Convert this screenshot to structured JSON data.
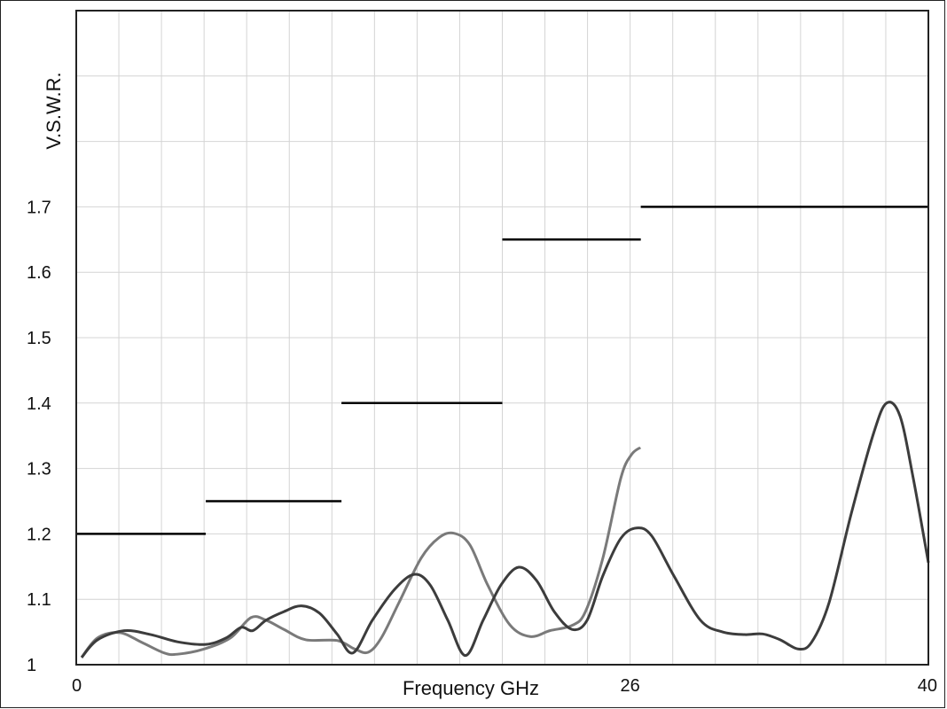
{
  "chart_data": {
    "type": "line",
    "y_label": "V.S.W.R.",
    "x_label": "Frequency GHz",
    "xlim": [
      0,
      40
    ],
    "xticks": [
      0,
      26,
      40
    ],
    "x_grid": [
      2,
      4,
      6,
      8,
      10,
      12,
      14,
      16,
      18,
      20,
      22,
      24,
      26,
      28,
      30,
      32,
      34,
      36,
      38
    ],
    "ylim": [
      1,
      2
    ],
    "yticks": [
      1,
      1.1,
      1.2,
      1.3,
      1.4,
      1.5,
      1.6,
      1.7
    ],
    "y_grid": [
      1.8,
      1.9
    ],
    "grid": true,
    "limits": {
      "color": "#000000",
      "segments": [
        {
          "x0": 0,
          "x1": 6.08,
          "value": 1.2
        },
        {
          "x0": 6.08,
          "x1": 12.45,
          "value": 1.25
        },
        {
          "x0": 12.45,
          "x1": 20,
          "value": 1.4
        },
        {
          "x0": 20,
          "x1": 26.5,
          "value": 1.65
        },
        {
          "x0": 26.5,
          "x1": 40,
          "value": 1.7
        }
      ]
    },
    "series": [
      {
        "color": "#7a7a7a",
        "x": [
          0.25,
          1.0,
          2.04,
          3.08,
          4.12,
          4.75,
          6.0,
          7.24,
          8.2,
          8.91,
          9.74,
          10.78,
          12.24,
          13.07,
          13.7,
          14.32,
          15.15,
          16.19,
          17.02,
          17.73,
          18.48,
          19.31,
          20.35,
          21.31,
          22.23,
          23.27,
          23.9,
          24.72,
          25.56,
          26.06,
          26.48
        ],
        "values": [
          1.011,
          1.041,
          1.049,
          1.034,
          1.018,
          1.016,
          1.024,
          1.041,
          1.072,
          1.068,
          1.054,
          1.038,
          1.037,
          1.024,
          1.019,
          1.041,
          1.095,
          1.163,
          1.194,
          1.201,
          1.183,
          1.122,
          1.061,
          1.043,
          1.052,
          1.06,
          1.081,
          1.163,
          1.285,
          1.321,
          1.332
        ]
      },
      {
        "color": "#3c3c3c",
        "x": [
          0.25,
          1.0,
          2.25,
          3.5,
          4.75,
          6.08,
          7.04,
          7.74,
          8.28,
          8.91,
          9.74,
          10.57,
          11.41,
          12.24,
          12.99,
          13.9,
          14.94,
          15.86,
          16.61,
          17.44,
          18.27,
          19.1,
          19.94,
          20.77,
          21.6,
          22.44,
          23.27,
          23.98,
          24.72,
          25.56,
          26.31,
          27.01,
          28.05,
          29.3,
          30.34,
          31.38,
          32.22,
          33.05,
          33.88,
          34.51,
          35.34,
          36.38,
          37.42,
          38.04,
          38.67,
          39.29,
          40
        ],
        "values": [
          1.011,
          1.038,
          1.052,
          1.046,
          1.035,
          1.031,
          1.041,
          1.057,
          1.052,
          1.068,
          1.081,
          1.09,
          1.079,
          1.047,
          1.018,
          1.068,
          1.115,
          1.138,
          1.122,
          1.068,
          1.014,
          1.068,
          1.122,
          1.149,
          1.129,
          1.081,
          1.054,
          1.068,
          1.136,
          1.193,
          1.209,
          1.197,
          1.136,
          1.068,
          1.05,
          1.046,
          1.047,
          1.038,
          1.024,
          1.034,
          1.095,
          1.231,
          1.353,
          1.4,
          1.38,
          1.285,
          1.156
        ]
      }
    ]
  }
}
